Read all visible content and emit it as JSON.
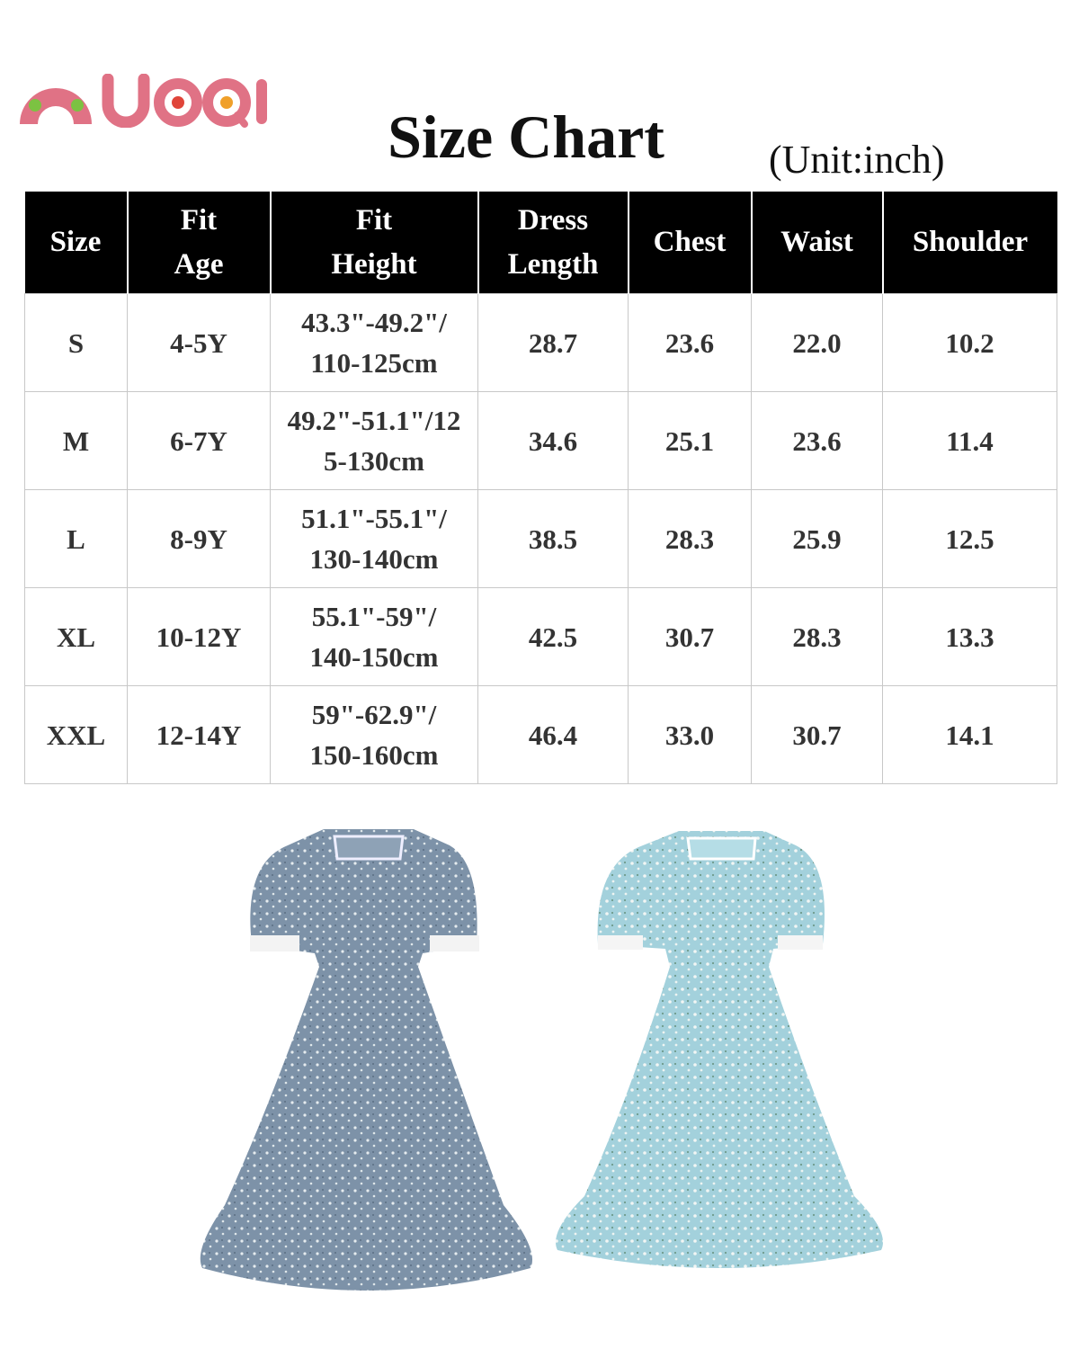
{
  "brand": {
    "logo_text": "NUOQI",
    "colors": {
      "pink": "#e07285",
      "green": "#7cc242",
      "red": "#e0453a",
      "orange": "#f0a02a"
    }
  },
  "header": {
    "title": "Size Chart",
    "unit": "(Unit:inch)"
  },
  "table": {
    "columns": [
      {
        "line1": "Size",
        "line2": ""
      },
      {
        "line1": "Fit",
        "line2": "Age"
      },
      {
        "line1": "Fit",
        "line2": "Height"
      },
      {
        "line1": "Dress",
        "line2": "Length"
      },
      {
        "line1": "Chest",
        "line2": ""
      },
      {
        "line1": "Waist",
        "line2": ""
      },
      {
        "line1": "Shoulder",
        "line2": ""
      }
    ],
    "rows": [
      {
        "size": "S",
        "age": "4-5Y",
        "height1": "43.3\"-49.2\"/",
        "height2": "110-125cm",
        "length": "28.7",
        "chest": "23.6",
        "waist": "22.0",
        "shoulder": "10.2"
      },
      {
        "size": "M",
        "age": "6-7Y",
        "height1": "49.2\"-51.1\"/12",
        "height2": "5-130cm",
        "length": "34.6",
        "chest": "25.1",
        "waist": "23.6",
        "shoulder": "11.4"
      },
      {
        "size": "L",
        "age": "8-9Y",
        "height1": "51.1\"-55.1\"/",
        "height2": "130-140cm",
        "length": "38.5",
        "chest": "28.3",
        "waist": "25.9",
        "shoulder": "12.5"
      },
      {
        "size": "XL",
        "age": "10-12Y",
        "height1": "55.1\"-59\"/",
        "height2": "140-150cm",
        "length": "42.5",
        "chest": "30.7",
        "waist": "28.3",
        "shoulder": "13.3"
      },
      {
        "size": "XXL",
        "age": "12-14Y",
        "height1": "59\"-62.9\"/",
        "height2": "150-160cm",
        "length": "46.4",
        "chest": "33.0",
        "waist": "30.7",
        "shoulder": "14.1"
      }
    ]
  },
  "products": [
    {
      "name": "dress-dusty-blue",
      "color": "#7d92a8"
    },
    {
      "name": "dress-light-blue",
      "color": "#a3d1dc"
    }
  ]
}
